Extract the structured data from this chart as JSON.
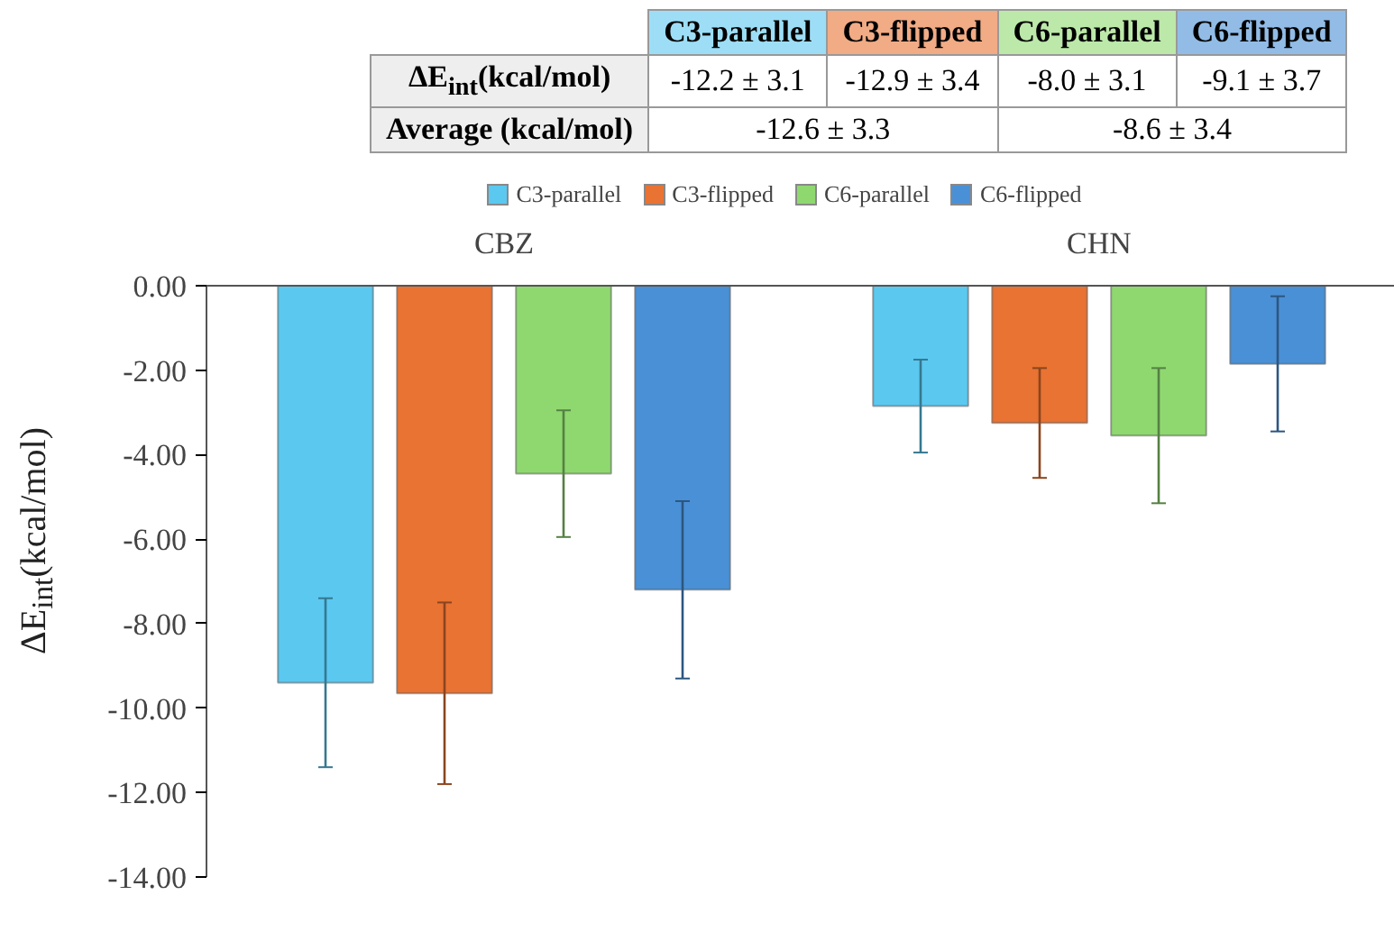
{
  "chart_data": {
    "type": "bar",
    "categories": [
      "CBZ",
      "CHN"
    ],
    "ylabel": "ΔE$_{int}$(kcal/mol)",
    "ylim": [
      -14,
      0
    ],
    "yticks": [
      {
        "value": 0,
        "label": "0.00"
      },
      {
        "value": -2,
        "label": "-2.00"
      },
      {
        "value": -4,
        "label": "-4.00"
      },
      {
        "value": -6,
        "label": "-6.00"
      },
      {
        "value": -8,
        "label": "-8.00"
      },
      {
        "value": -10,
        "label": "-10.00"
      },
      {
        "value": -12,
        "label": "-12.00"
      },
      {
        "value": -14,
        "label": "-14.00"
      }
    ],
    "series": [
      {
        "name": "C3-parallel",
        "color": "#5bc8f0",
        "values": [
          -9.4,
          -2.85
        ],
        "errors": [
          2.0,
          1.1
        ]
      },
      {
        "name": "C3-flipped",
        "color": "#e87333",
        "values": [
          -9.65,
          -3.25
        ],
        "errors": [
          2.15,
          1.3
        ]
      },
      {
        "name": "C6-parallel",
        "color": "#8fd870",
        "values": [
          -4.45,
          -3.55
        ],
        "errors": [
          1.5,
          1.6
        ]
      },
      {
        "name": "C6-flipped",
        "color": "#4a90d6",
        "values": [
          -7.2,
          -1.85
        ],
        "errors": [
          2.1,
          1.6
        ]
      }
    ],
    "legend": "top",
    "grid": false,
    "annotations": [
      "ΔE$_{int}$(kcal/mol)",
      "-12.2 ± 3.1",
      "-12.9 ± 3.4",
      "-8.0 ± 3.1",
      "-9.1 ± 3.7",
      "Average (kcal/mol)",
      "-12.6 ± 3.3",
      "-8.6 ± 3.4"
    ]
  }
}
